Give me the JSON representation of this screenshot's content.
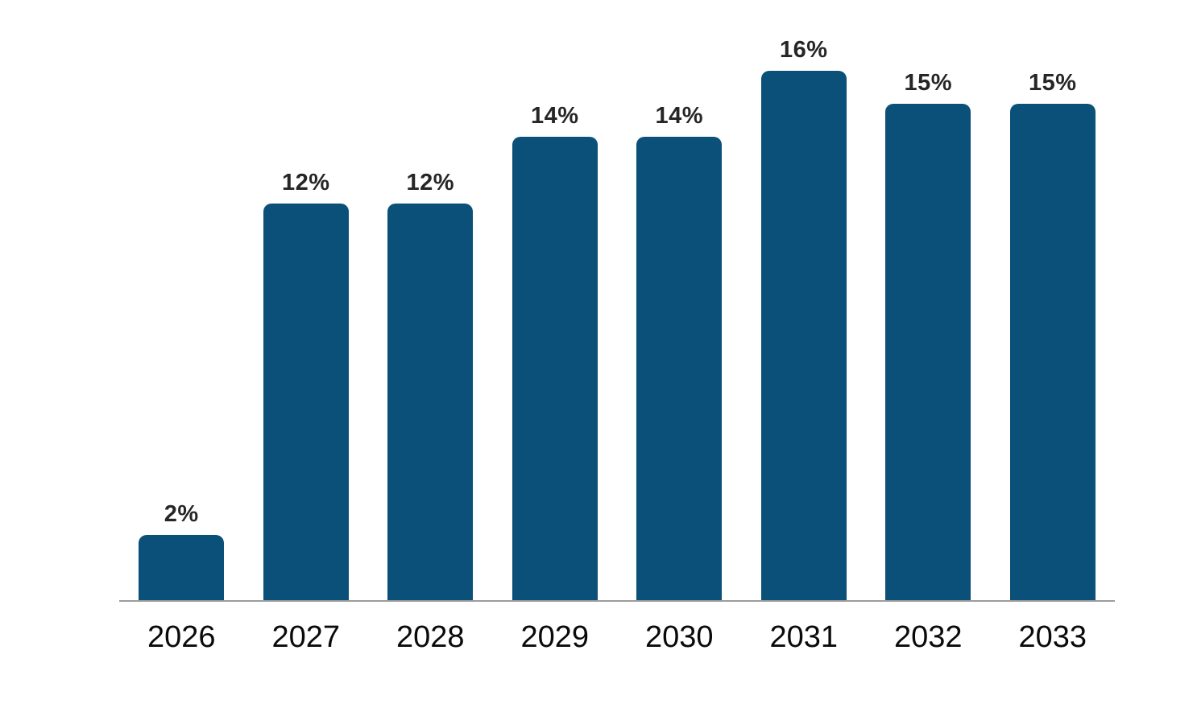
{
  "chart_data": {
    "type": "bar",
    "title": "",
    "xlabel": "",
    "ylabel": "",
    "categories": [
      "2026",
      "2027",
      "2028",
      "2029",
      "2030",
      "2031",
      "2032",
      "2033"
    ],
    "values": [
      2,
      12,
      12,
      14,
      14,
      16,
      15,
      15
    ],
    "value_labels": [
      "2%",
      "12%",
      "12%",
      "14%",
      "14%",
      "16%",
      "15%",
      "15%"
    ],
    "ylim": [
      0,
      16
    ],
    "grid": false,
    "legend": false,
    "y_axis_visible": false,
    "x_axis_line": true,
    "colors": {
      "bar": "#0b5078",
      "value_label": "#262626",
      "tick_label": "#0a0a0a",
      "axis_line": "#9c9c9c",
      "background": "#ffffff"
    }
  }
}
